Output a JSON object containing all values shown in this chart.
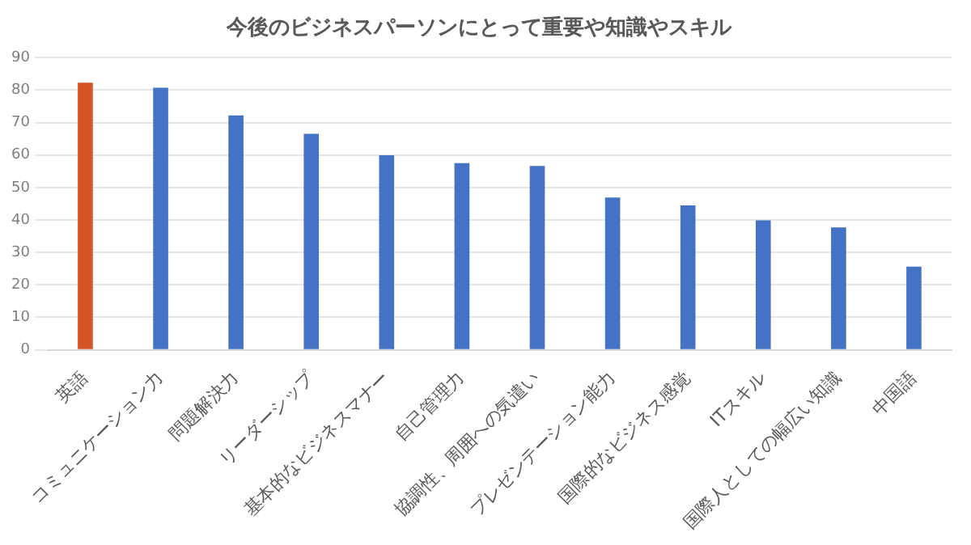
{
  "chart_data": {
    "type": "bar",
    "title": "今後のビジネスパーソンにとって重要や知識やスキル",
    "categories": [
      "英語",
      "コミュニケーション力",
      "問題解決力",
      "リーダーシップ",
      "基本的なビジネスマナー",
      "自己管理力",
      "協調性、周囲への気遣い",
      "プレゼンテーション能力",
      "国際的なビジネス感覚",
      "ITスキル",
      "国際人としての幅広い知識",
      "中国語"
    ],
    "values": [
      82.3,
      80.7,
      72.2,
      66.5,
      59.9,
      57.5,
      56.6,
      46.9,
      44.5,
      39.9,
      37.7,
      25.6
    ],
    "colors": [
      "#d65426",
      "#4472c4",
      "#4472c4",
      "#4472c4",
      "#4472c4",
      "#4472c4",
      "#4472c4",
      "#4472c4",
      "#4472c4",
      "#4472c4",
      "#4472c4",
      "#4472c4"
    ],
    "ylim": [
      0,
      90
    ],
    "yticks": [
      0,
      10,
      20,
      30,
      40,
      50,
      60,
      70,
      80,
      90
    ],
    "grid": "y",
    "legend": false
  }
}
